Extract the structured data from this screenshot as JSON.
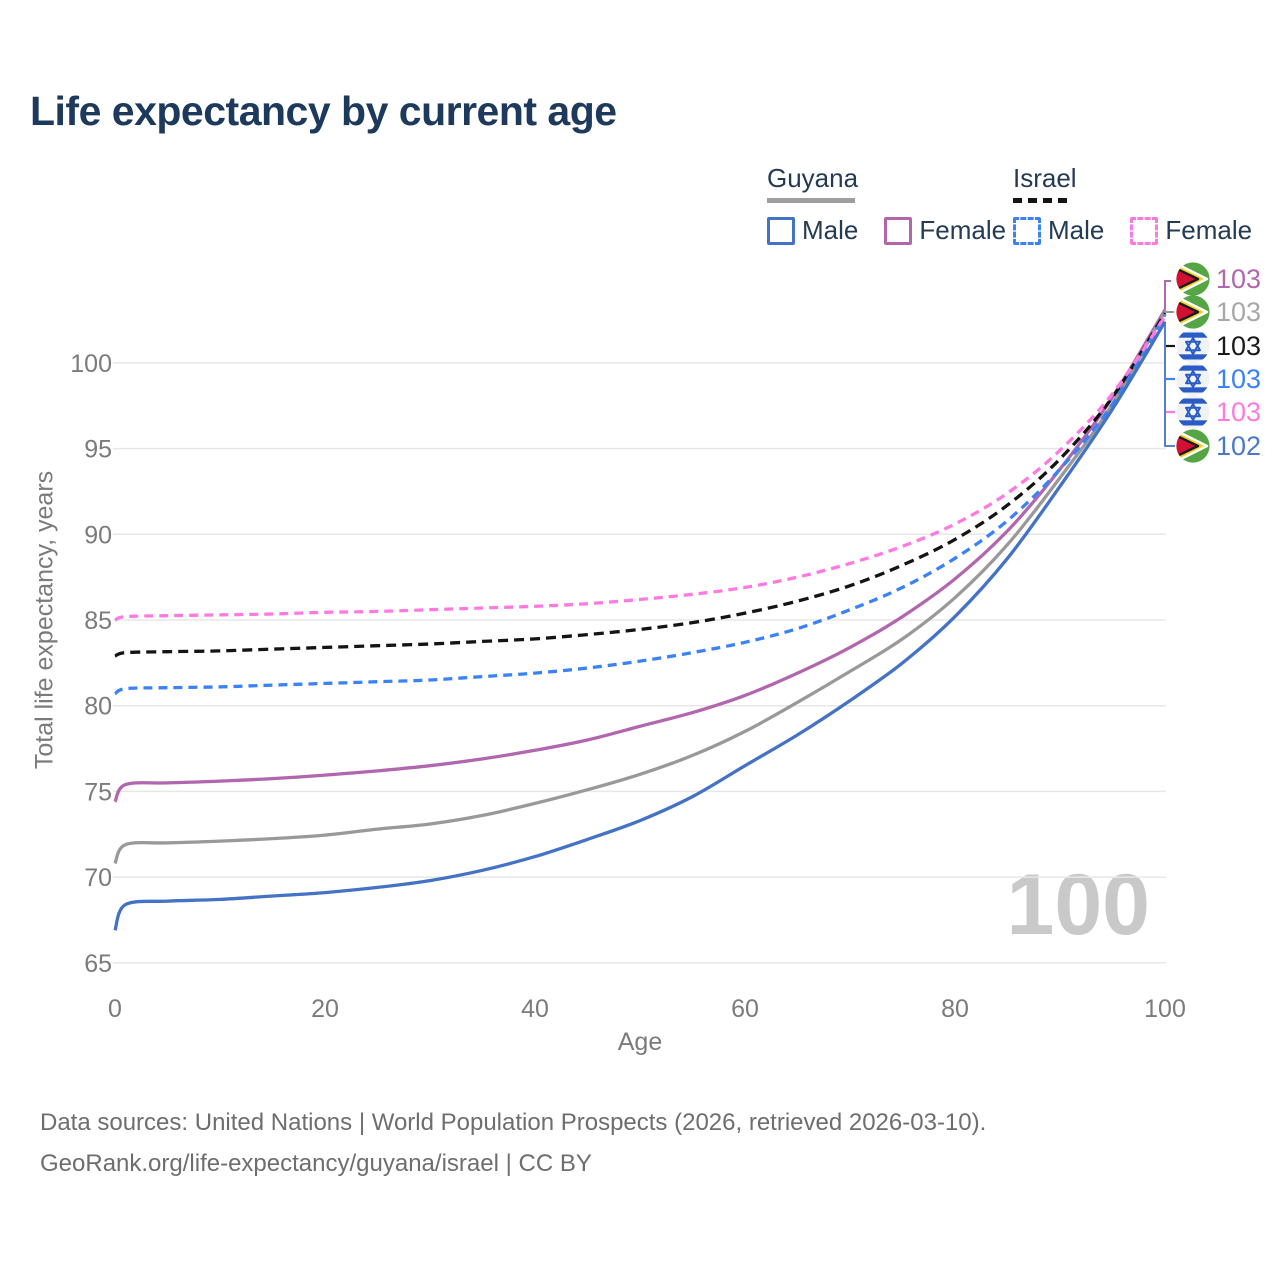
{
  "header": {
    "title": "Life expectancy by current age"
  },
  "legend": {
    "groups": [
      {
        "country": "Guyana",
        "line_style": "solid",
        "line_color": "#9e9e9e",
        "items": [
          {
            "label": "Male",
            "color": "#4472c4",
            "style": "solid"
          },
          {
            "label": "Female",
            "color": "#b266ae",
            "style": "solid"
          }
        ]
      },
      {
        "country": "Israel",
        "line_style": "dashed",
        "line_color": "#141414",
        "items": [
          {
            "label": "Male",
            "color": "#3b82f6",
            "style": "dashed"
          },
          {
            "label": "Female",
            "color": "#ff7ae0",
            "style": "dashed"
          }
        ]
      }
    ]
  },
  "chart_data": {
    "type": "line",
    "title": "Life expectancy by current age",
    "xlabel": "Age",
    "ylabel": "Total life expectancy, years",
    "watermark": "100",
    "xlim": [
      0,
      100
    ],
    "ylim": [
      65,
      104
    ],
    "x_ticks": [
      0,
      20,
      40,
      60,
      80,
      100
    ],
    "y_ticks": [
      65,
      70,
      75,
      80,
      85,
      90,
      95,
      100
    ],
    "grid": "horizontal",
    "legend_position": "top-right",
    "x": [
      0,
      1,
      5,
      10,
      15,
      20,
      25,
      30,
      35,
      40,
      45,
      50,
      55,
      60,
      65,
      70,
      75,
      80,
      85,
      90,
      95,
      100
    ],
    "series": [
      {
        "name": "Guyana Female",
        "country": "guyana",
        "style": "solid",
        "color": "#b266ae",
        "label_color": "#b266ae",
        "end_label": "103",
        "values": [
          74.4,
          75.4,
          75.5,
          75.6,
          75.75,
          75.95,
          76.2,
          76.5,
          76.9,
          77.4,
          78.0,
          78.8,
          79.6,
          80.6,
          81.9,
          83.4,
          85.2,
          87.4,
          90.2,
          93.8,
          98.0,
          103.1
        ]
      },
      {
        "name": "Guyana",
        "country": "guyana",
        "style": "solid",
        "color": "#999999",
        "label_color": "#a8a8a8",
        "end_label": "103",
        "values": [
          70.8,
          71.9,
          72.0,
          72.1,
          72.25,
          72.45,
          72.8,
          73.1,
          73.6,
          74.3,
          75.1,
          76.0,
          77.1,
          78.5,
          80.2,
          82.0,
          83.9,
          86.3,
          89.4,
          93.3,
          97.6,
          103.0
        ]
      },
      {
        "name": "Israel",
        "country": "israel",
        "style": "dashed",
        "color": "#141414",
        "label_color": "#1a1a1a",
        "end_label": "103",
        "values": [
          82.9,
          83.1,
          83.15,
          83.2,
          83.3,
          83.4,
          83.5,
          83.6,
          83.75,
          83.9,
          84.15,
          84.45,
          84.85,
          85.4,
          86.1,
          87.0,
          88.2,
          89.7,
          91.7,
          94.4,
          98.0,
          102.9
        ]
      },
      {
        "name": "Israel Male",
        "country": "israel",
        "style": "dashed",
        "color": "#3b82f6",
        "label_color": "#3b82f6",
        "end_label": "103",
        "values": [
          80.7,
          81.0,
          81.05,
          81.1,
          81.2,
          81.3,
          81.4,
          81.5,
          81.7,
          81.9,
          82.2,
          82.6,
          83.1,
          83.7,
          84.5,
          85.6,
          86.9,
          88.6,
          90.8,
          93.8,
          97.6,
          102.8
        ]
      },
      {
        "name": "Israel Female",
        "country": "israel",
        "style": "dashed",
        "color": "#ff7ae0",
        "label_color": "#ff7ae0",
        "end_label": "103",
        "values": [
          85.0,
          85.2,
          85.25,
          85.3,
          85.35,
          85.45,
          85.5,
          85.6,
          85.7,
          85.8,
          85.95,
          86.2,
          86.5,
          86.9,
          87.5,
          88.3,
          89.3,
          90.6,
          92.4,
          94.9,
          98.2,
          102.7
        ]
      },
      {
        "name": "Guyana Male",
        "country": "guyana",
        "style": "solid",
        "color": "#4472c4",
        "label_color": "#4b79c8",
        "end_label": "102",
        "values": [
          66.9,
          68.4,
          68.6,
          68.7,
          68.9,
          69.1,
          69.4,
          69.8,
          70.4,
          71.2,
          72.2,
          73.3,
          74.7,
          76.5,
          78.3,
          80.3,
          82.5,
          85.2,
          88.6,
          92.8,
          97.3,
          102.4
        ]
      }
    ]
  },
  "footer": {
    "line1": "Data sources: United Nations | World Population Prospects (2026, retrieved 2026-03-10).",
    "line2": "GeoRank.org/life-expectancy/guyana/israel | CC BY"
  }
}
